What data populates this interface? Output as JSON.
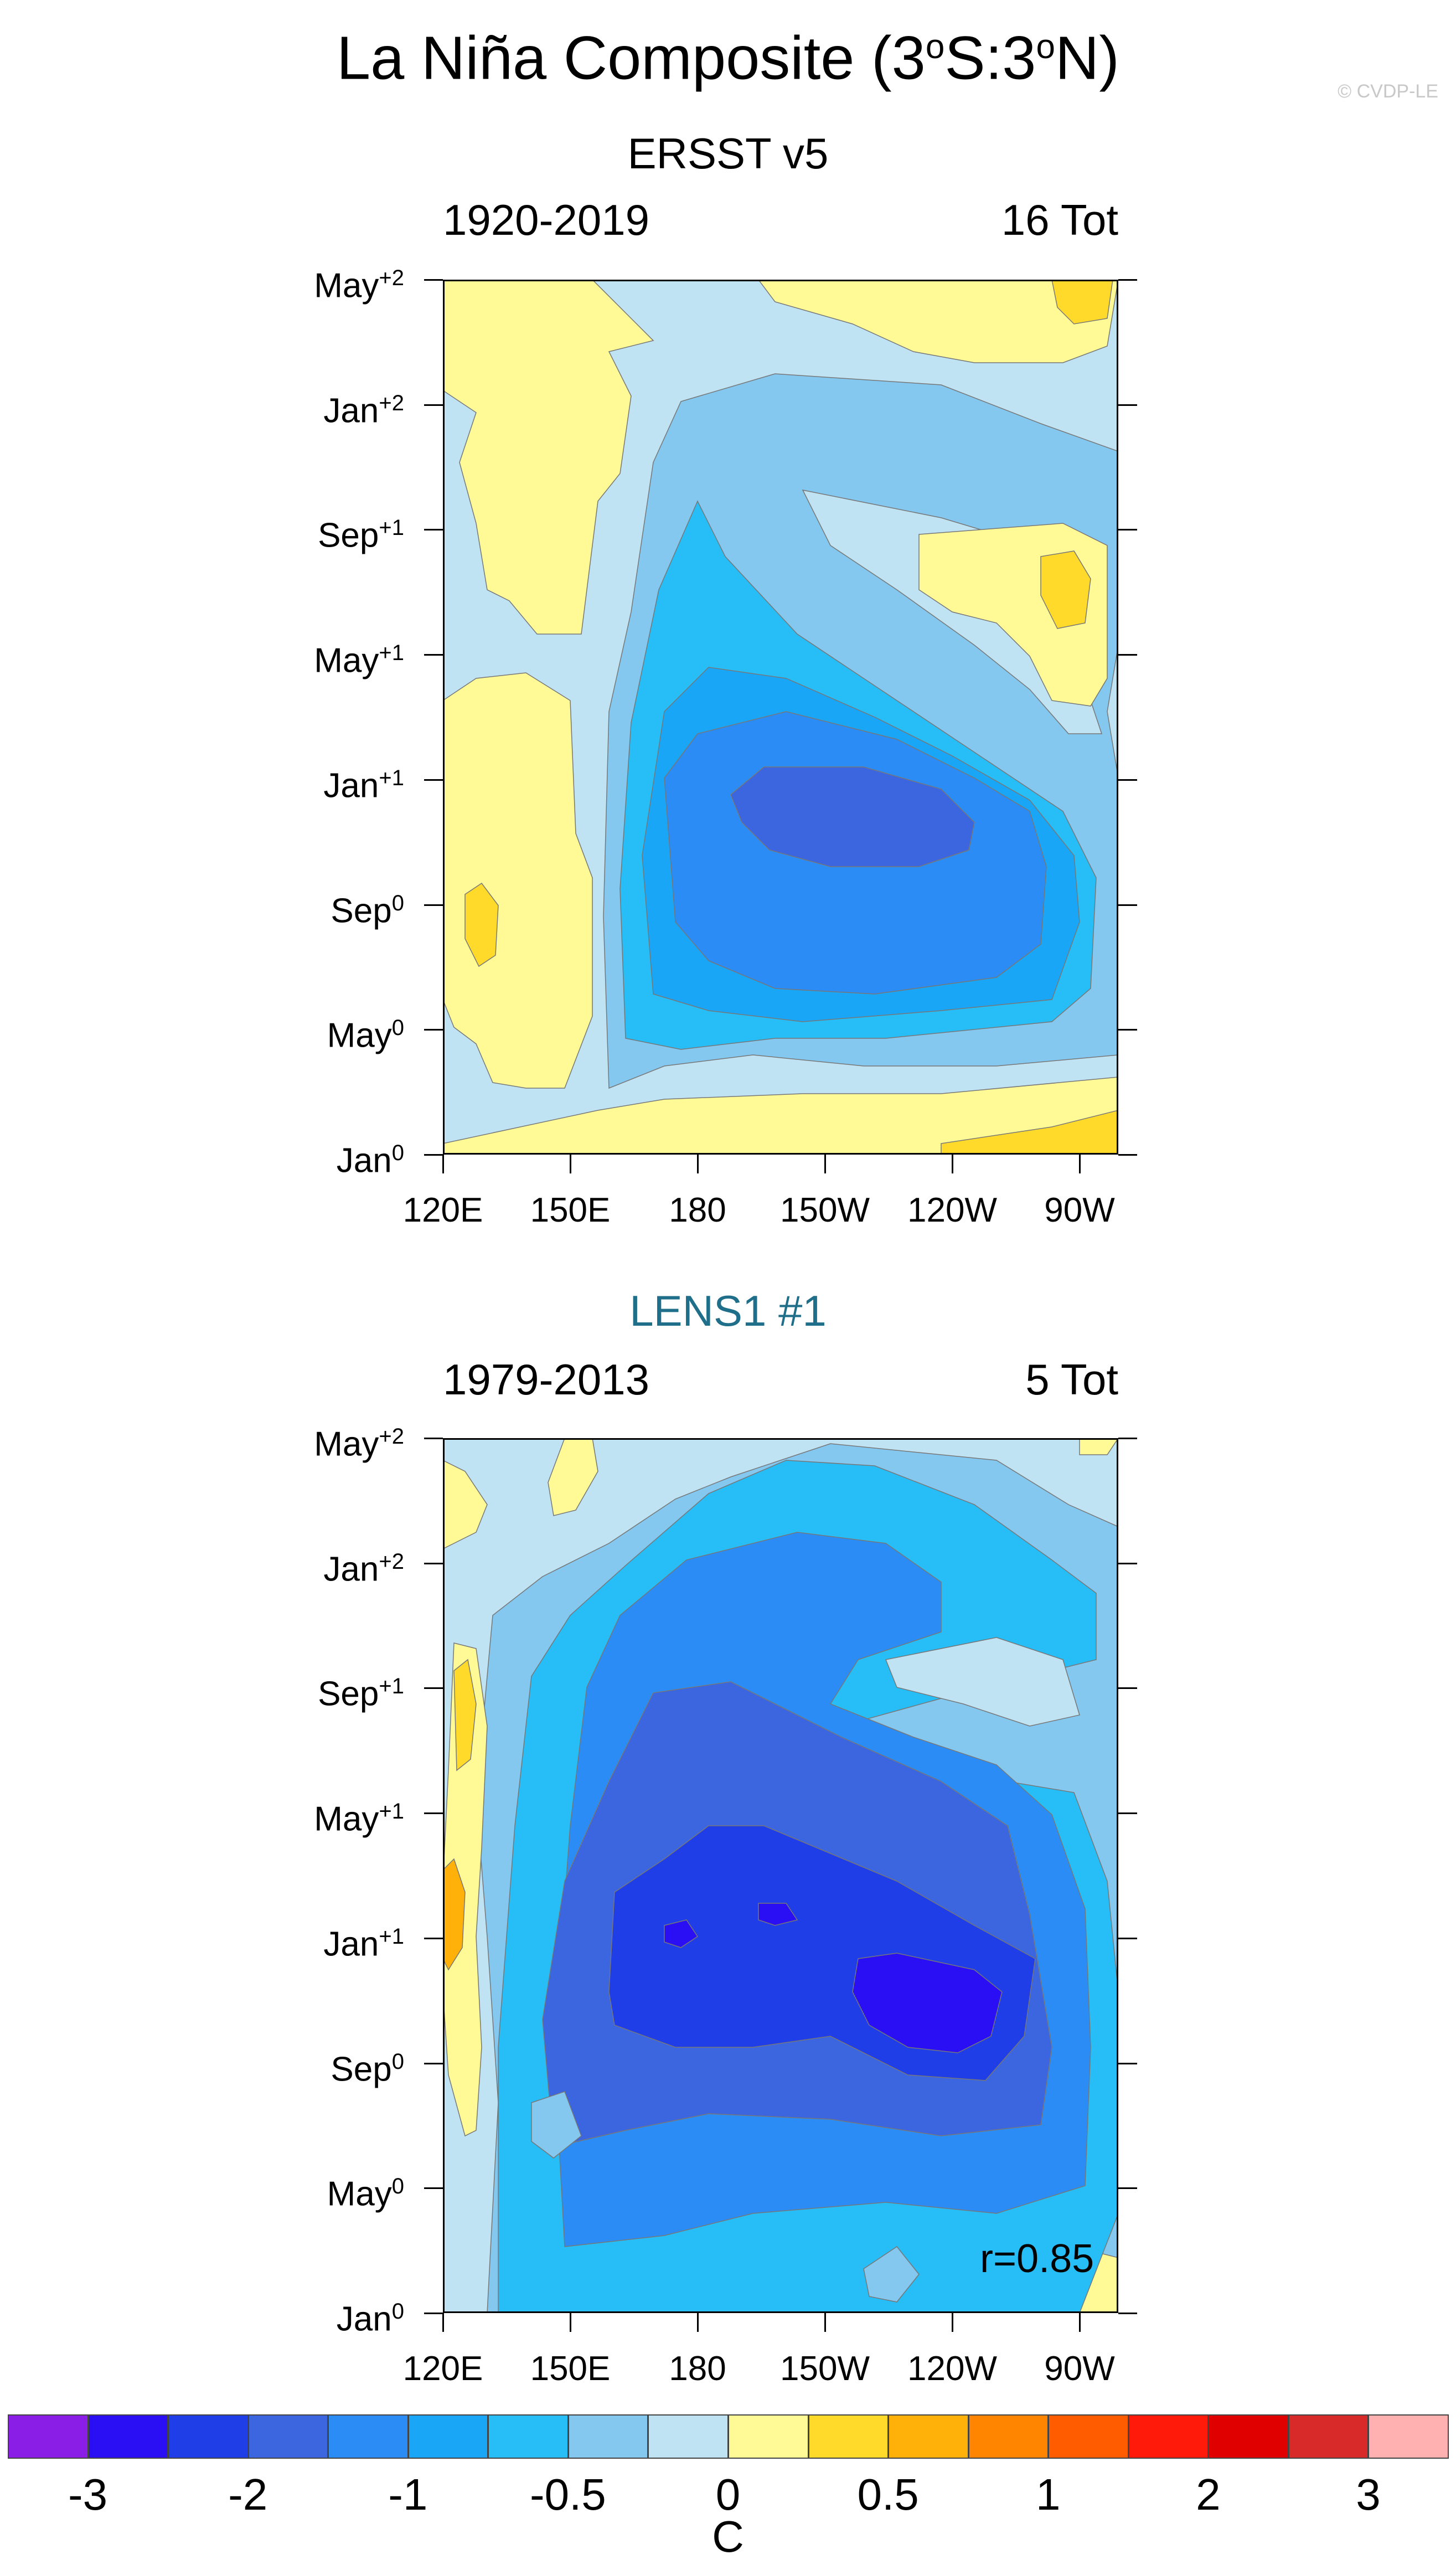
{
  "title": "La Niña Composite (3°S:3°N)",
  "title_parts": {
    "pre": "La Niña Composite (3",
    "sup1": "o",
    "mid": "S:3",
    "sup2": "o",
    "post": "N)"
  },
  "copyright": "© CVDP-LE",
  "colors": {
    "levels": [
      "#8b1ee6",
      "#2a0ff5",
      "#1f3ee8",
      "#3b66e0",
      "#2b8cf5",
      "#1aa6f7",
      "#27bdf7",
      "#84c8ef",
      "#bfe3f3",
      "#fffa96",
      "#ffda2a",
      "#ffb10a",
      "#ff8400",
      "#ff5c00",
      "#ff1a0a",
      "#e00000",
      "#d92a2a",
      "#ffb0b0"
    ],
    "observed_title": "#000000",
    "model_title": "#1f6f8b"
  },
  "y_ticks": [
    {
      "label": "May",
      "sup": "+2"
    },
    {
      "label": "Jan",
      "sup": "+2"
    },
    {
      "label": "Sep",
      "sup": "+1"
    },
    {
      "label": "May",
      "sup": "+1"
    },
    {
      "label": "Jan",
      "sup": "+1"
    },
    {
      "label": "Sep",
      "sup": "0"
    },
    {
      "label": "May",
      "sup": "0"
    },
    {
      "label": "Jan",
      "sup": "0"
    }
  ],
  "x_ticks": [
    "120E",
    "150E",
    "180",
    "150W",
    "120W",
    "90W"
  ],
  "panels": [
    {
      "title": "ERSST v5",
      "left_label": "1920-2019",
      "right_label": "16 Tot",
      "r_label": ""
    },
    {
      "title": "LENS1 #1",
      "left_label": "1979-2013",
      "right_label": "5 Tot",
      "r_label": "r=0.85"
    }
  ],
  "colorbar": {
    "labels": [
      "-3",
      "-2",
      "-1",
      "-0.5",
      "0",
      "0.5",
      "1",
      "2",
      "3"
    ],
    "unit": "C"
  },
  "chart_data": [
    {
      "type": "heatmap",
      "title": "ERSST v5",
      "subtitle_left": "1920-2019",
      "subtitle_right": "16 Tot",
      "x_tick_labels": [
        "120E",
        "150E",
        "180",
        "150W",
        "120W",
        "90W"
      ],
      "y_tick_labels": [
        "Jan0",
        "May0",
        "Sep0",
        "Jan+1",
        "May+1",
        "Sep+1",
        "Jan+2",
        "May+2"
      ],
      "x_range": [
        120,
        285
      ],
      "y_range": [
        0,
        28
      ],
      "colorbar_levels": [
        -3,
        -2.5,
        -2,
        -1.5,
        -1.25,
        -1,
        -0.75,
        -0.5,
        -0.25,
        0,
        0.25,
        0.5,
        0.75,
        1,
        1.5,
        2,
        2.5,
        3
      ],
      "minimum": -1.5,
      "minimum_location": {
        "lon": 215,
        "month": 13
      }
    },
    {
      "type": "heatmap",
      "title": "LENS1 #1",
      "subtitle_left": "1979-2013",
      "subtitle_right": "5 Tot",
      "x_tick_labels": [
        "120E",
        "150E",
        "180",
        "150W",
        "120W",
        "90W"
      ],
      "y_tick_labels": [
        "Jan0",
        "May0",
        "Sep0",
        "Jan+1",
        "May+1",
        "Sep+1",
        "Jan+2",
        "May+2"
      ],
      "x_range": [
        120,
        285
      ],
      "y_range": [
        0,
        28
      ],
      "pattern_correlation": 0.85,
      "minimum": -2.25,
      "minimum_location": {
        "lon": 235,
        "month": 11
      }
    }
  ]
}
